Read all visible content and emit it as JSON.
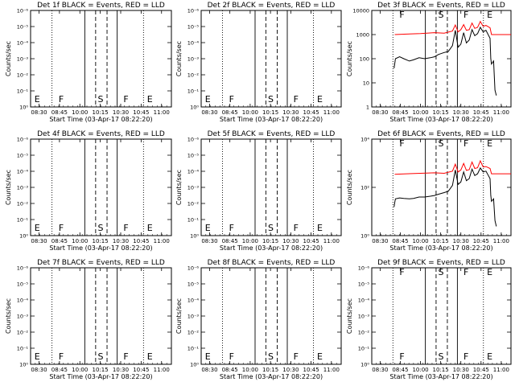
{
  "figure": {
    "xlabel": "Start Time (03-Apr-17 08:22:20)",
    "ylabel": "Counts/sec",
    "xticks": [
      "08:30",
      "08:45",
      "10:00",
      "10:15",
      "10:30",
      "10:45",
      "11:00"
    ],
    "yticks_decade": [
      "10⁰",
      "10⁻¹",
      "10⁻²",
      "10⁻³",
      "10⁻⁴",
      "10⁻⁵",
      "10⁻⁶"
    ],
    "yticks_log": [
      "1",
      "10",
      "100",
      "1000",
      "10000"
    ],
    "yticks_exp": [
      "10⁰",
      "10²",
      "10⁴"
    ],
    "legend_text": "BLACK = Events, RED = LLD",
    "colors": {
      "events": "#000000",
      "lld": "#ff0000"
    }
  },
  "chart_data": [
    {
      "type": "line",
      "title": "Det 1f BLACK = Events, RED = LLD",
      "xlabel": "Start Time (03-Apr-17 08:22:20)",
      "ylabel": "Counts/sec",
      "y_scale": "log",
      "has_data": false,
      "markers": [
        "E",
        "F",
        "S",
        "F",
        "E"
      ],
      "series": []
    },
    {
      "type": "line",
      "title": "Det 2f BLACK = Events, RED = LLD",
      "xlabel": "Start Time (03-Apr-17 08:22:20)",
      "ylabel": "Counts/sec",
      "y_scale": "log",
      "has_data": false,
      "markers": [
        "E",
        "F",
        "S",
        "F",
        "E"
      ],
      "series": []
    },
    {
      "type": "line",
      "title": "Det 3f BLACK = Events, RED = LLD",
      "xlabel": "Start Time (03-Apr-17 08:22:20)",
      "ylabel": "Counts/sec",
      "y_scale": "log",
      "ylim": [
        1,
        10000
      ],
      "has_data": true,
      "markers": [
        "F",
        "S",
        "F",
        "E"
      ],
      "series": [
        {
          "color": "#ff0000",
          "points": [
            [
              16.5,
              1000
            ],
            [
              25,
              1050
            ],
            [
              35,
              1100
            ],
            [
              45,
              1200
            ],
            [
              52,
              1150
            ],
            [
              58,
              1400
            ],
            [
              60,
              2500
            ],
            [
              62,
              1300
            ],
            [
              64,
              1600
            ],
            [
              66,
              2600
            ],
            [
              68,
              1500
            ],
            [
              70,
              1600
            ],
            [
              72,
              3000
            ],
            [
              74,
              1800
            ],
            [
              76,
              2000
            ],
            [
              78,
              3500
            ],
            [
              80,
              2200
            ],
            [
              82,
              2400
            ],
            [
              85,
              1900
            ],
            [
              86,
              1000
            ],
            [
              95,
              1000
            ],
            [
              100,
              1000
            ]
          ]
        },
        {
          "color": "#000000",
          "points": [
            [
              16,
              40
            ],
            [
              16.5,
              60
            ],
            [
              17,
              100
            ],
            [
              20,
              120
            ],
            [
              23,
              100
            ],
            [
              27,
              80
            ],
            [
              30,
              90
            ],
            [
              34,
              110
            ],
            [
              38,
              100
            ],
            [
              42,
              110
            ],
            [
              45,
              120
            ],
            [
              48,
              150
            ],
            [
              52,
              180
            ],
            [
              55,
              200
            ],
            [
              58,
              350
            ],
            [
              60,
              1500
            ],
            [
              62,
              300
            ],
            [
              64,
              400
            ],
            [
              66,
              1200
            ],
            [
              68,
              450
            ],
            [
              70,
              600
            ],
            [
              72,
              1600
            ],
            [
              74,
              900
            ],
            [
              76,
              1100
            ],
            [
              78,
              2000
            ],
            [
              80,
              1300
            ],
            [
              82,
              1500
            ],
            [
              85,
              700
            ],
            [
              85.5,
              100
            ],
            [
              86,
              60
            ],
            [
              87.5,
              80
            ],
            [
              88.5,
              5
            ],
            [
              89.5,
              3
            ]
          ]
        }
      ]
    },
    {
      "type": "line",
      "title": "Det 4f BLACK = Events, RED = LLD",
      "xlabel": "Start Time (03-Apr-17 08:22:20)",
      "ylabel": "Counts/sec",
      "y_scale": "log",
      "has_data": false,
      "markers": [
        "E",
        "F",
        "S",
        "F",
        "E"
      ],
      "series": []
    },
    {
      "type": "line",
      "title": "Det 5f BLACK = Events, RED = LLD",
      "xlabel": "Start Time (03-Apr-17 08:22:20)",
      "ylabel": "Counts/sec",
      "y_scale": "log",
      "has_data": false,
      "markers": [
        "E",
        "F",
        "S",
        "F",
        "E"
      ],
      "series": []
    },
    {
      "type": "line",
      "title": "Det 6f BLACK = Events, RED = LLD",
      "xlabel": "Start Time (03-Apr-17 08:22:20)",
      "ylabel": "Counts/sec",
      "y_scale": "log",
      "ylim": [
        1,
        100000
      ],
      "has_data": true,
      "markers": [
        "F",
        "S",
        "F",
        "E"
      ],
      "series": [
        {
          "color": "#ff0000",
          "points": [
            [
              16.5,
              1500
            ],
            [
              25,
              1600
            ],
            [
              35,
              1700
            ],
            [
              45,
              1800
            ],
            [
              52,
              1700
            ],
            [
              58,
              2200
            ],
            [
              60,
              5000
            ],
            [
              62,
              2000
            ],
            [
              64,
              2500
            ],
            [
              66,
              5500
            ],
            [
              68,
              2400
            ],
            [
              70,
              2600
            ],
            [
              72,
              6500
            ],
            [
              74,
              3000
            ],
            [
              76,
              3300
            ],
            [
              78,
              7500
            ],
            [
              80,
              3600
            ],
            [
              82,
              3800
            ],
            [
              85,
              3000
            ],
            [
              86,
              1600
            ],
            [
              95,
              1600
            ],
            [
              100,
              1600
            ]
          ]
        },
        {
          "color": "#000000",
          "points": [
            [
              16,
              30
            ],
            [
              16.5,
              50
            ],
            [
              17,
              80
            ],
            [
              20,
              90
            ],
            [
              23,
              85
            ],
            [
              27,
              80
            ],
            [
              30,
              85
            ],
            [
              34,
              100
            ],
            [
              38,
              100
            ],
            [
              42,
              110
            ],
            [
              45,
              120
            ],
            [
              48,
              140
            ],
            [
              52,
              170
            ],
            [
              55,
              200
            ],
            [
              58,
              400
            ],
            [
              60,
              2500
            ],
            [
              62,
              450
            ],
            [
              64,
              600
            ],
            [
              66,
              2000
            ],
            [
              68,
              700
            ],
            [
              70,
              900
            ],
            [
              72,
              2800
            ],
            [
              74,
              1300
            ],
            [
              76,
              1600
            ],
            [
              78,
              3200
            ],
            [
              80,
              2000
            ],
            [
              82,
              2200
            ],
            [
              85,
              900
            ],
            [
              85.5,
              120
            ],
            [
              86,
              60
            ],
            [
              87.5,
              80
            ],
            [
              88.5,
              6
            ],
            [
              89.5,
              3
            ]
          ]
        }
      ]
    },
    {
      "type": "line",
      "title": "Det 7f BLACK = Events, RED = LLD",
      "xlabel": "Start Time (03-Apr-17 08:22:20)",
      "ylabel": "Counts/sec",
      "y_scale": "log",
      "has_data": false,
      "markers": [
        "E",
        "F",
        "S",
        "F",
        "E"
      ],
      "series": []
    },
    {
      "type": "line",
      "title": "Det 8f BLACK = Events, RED = LLD",
      "xlabel": "Start Time (03-Apr-17 08:22:20)",
      "ylabel": "Counts/sec",
      "y_scale": "log",
      "has_data": false,
      "markers": [
        "E",
        "F",
        "S",
        "F",
        "E"
      ],
      "series": []
    },
    {
      "type": "line",
      "title": "Det 9f BLACK = Events, RED = LLD",
      "xlabel": "Start Time (03-Apr-17 08:22:20)",
      "ylabel": "Counts/sec",
      "y_scale": "log",
      "has_data": false,
      "markers": [
        "F",
        "S",
        "F",
        "E"
      ],
      "series": []
    }
  ]
}
